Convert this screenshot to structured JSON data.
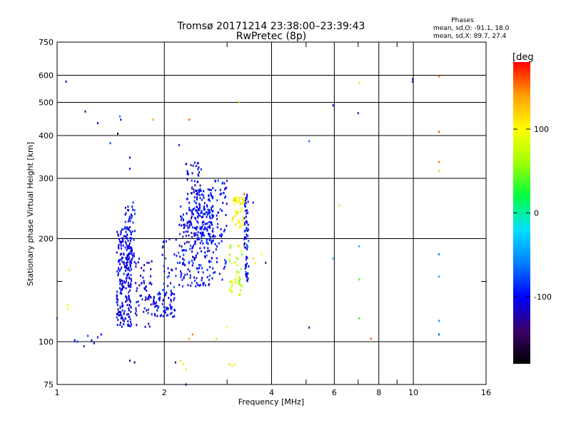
{
  "chart_data": {
    "type": "scatter",
    "title": "Tromsø 20171214 23:38:00–23:39:43",
    "subtitle": "RwPretec (8p)",
    "xlabel": "Frequency [MHz]",
    "ylabel": "Stationary phase Virtual Height [km]",
    "x_scale": "log",
    "y_scale": "log",
    "xlim": [
      1,
      16
    ],
    "ylim": [
      75,
      750
    ],
    "x_ticks": [
      1,
      2,
      4,
      6,
      8,
      10,
      16
    ],
    "x_minor_ticks": [
      3,
      5,
      7,
      9
    ],
    "y_ticks": [
      75,
      100,
      200,
      300,
      400,
      500,
      600,
      750
    ],
    "y_minor_ticks": [
      150
    ],
    "grid": true,
    "legend": {
      "heading": "Phases",
      "line1": "mean, sd,O: -91.1, 18.0",
      "line2": "mean, sd,X:  89.7, 27.4"
    },
    "colorbar": {
      "label": "[deg",
      "range": [
        -180,
        180
      ],
      "ticks": [
        -100,
        0,
        100
      ],
      "colors": [
        "#000000",
        "#3a006a",
        "#0000ff",
        "#0080ff",
        "#00e0ff",
        "#00ff40",
        "#a0ff00",
        "#ffff00",
        "#ffa000",
        "#ff0000"
      ]
    },
    "points": [
      {
        "x": 1.06,
        "y": 575,
        "p": -120
      },
      {
        "x": 1.2,
        "y": 470,
        "p": -135
      },
      {
        "x": 1.3,
        "y": 435,
        "p": -110
      },
      {
        "x": 1.41,
        "y": 380,
        "p": -80
      },
      {
        "x": 1.48,
        "y": 405,
        "p": -160
      },
      {
        "x": 1.5,
        "y": 455,
        "p": -60
      },
      {
        "x": 1.51,
        "y": 445,
        "p": -95
      },
      {
        "x": 1.6,
        "y": 345,
        "p": -105
      },
      {
        "x": 1.6,
        "y": 320,
        "p": -95
      },
      {
        "x": 1.86,
        "y": 445,
        "p": 140
      },
      {
        "x": 2.2,
        "y": 375,
        "p": -90
      },
      {
        "x": 2.35,
        "y": 445,
        "p": 160
      },
      {
        "x": 2.3,
        "y": 330,
        "p": -120
      },
      {
        "x": 2.32,
        "y": 315,
        "p": -100
      },
      {
        "x": 3.25,
        "y": 500,
        "p": 60
      },
      {
        "x": 5.1,
        "y": 385,
        "p": -70
      },
      {
        "x": 5.95,
        "y": 490,
        "p": -100
      },
      {
        "x": 7.05,
        "y": 570,
        "p": 80
      },
      {
        "x": 7.0,
        "y": 465,
        "p": -120
      },
      {
        "x": 9.95,
        "y": 575,
        "p": -110
      },
      {
        "x": 9.95,
        "y": 585,
        "p": -90
      },
      {
        "x": 11.8,
        "y": 595,
        "p": 150
      },
      {
        "x": 11.8,
        "y": 410,
        "p": 160
      },
      {
        "x": 11.8,
        "y": 335,
        "p": 150
      },
      {
        "x": 11.8,
        "y": 315,
        "p": 120
      },
      {
        "x": 11.8,
        "y": 180,
        "p": -60
      },
      {
        "x": 11.8,
        "y": 155,
        "p": -40
      },
      {
        "x": 11.8,
        "y": 115,
        "p": -50
      },
      {
        "x": 11.8,
        "y": 105,
        "p": -70
      },
      {
        "x": 7.05,
        "y": 190,
        "p": -40
      },
      {
        "x": 7.05,
        "y": 152,
        "p": 40
      },
      {
        "x": 7.05,
        "y": 117,
        "p": 20
      },
      {
        "x": 6.2,
        "y": 250,
        "p": 120
      },
      {
        "x": 5.95,
        "y": 175,
        "p": -30
      },
      {
        "x": 5.1,
        "y": 110,
        "p": -130
      },
      {
        "x": 3.85,
        "y": 170,
        "p": -140
      },
      {
        "x": 3.75,
        "y": 180,
        "p": 100
      },
      {
        "x": 3.55,
        "y": 255,
        "p": -100
      },
      {
        "x": 3.35,
        "y": 270,
        "p": 160
      },
      {
        "x": 2.95,
        "y": 290,
        "p": -110
      },
      {
        "x": 3.0,
        "y": 295,
        "p": -90
      },
      {
        "x": 1.07,
        "y": 125,
        "p": 90
      },
      {
        "x": 1.07,
        "y": 128,
        "p": 100
      },
      {
        "x": 1.0,
        "y": 117,
        "p": -60
      },
      {
        "x": 1.08,
        "y": 162,
        "p": 110
      },
      {
        "x": 1.12,
        "y": 101,
        "p": -100
      },
      {
        "x": 1.14,
        "y": 100,
        "p": -90
      },
      {
        "x": 1.19,
        "y": 97,
        "p": -120
      },
      {
        "x": 1.22,
        "y": 104,
        "p": -80
      },
      {
        "x": 1.25,
        "y": 101,
        "p": -100
      },
      {
        "x": 1.27,
        "y": 99,
        "p": -110
      },
      {
        "x": 1.3,
        "y": 103,
        "p": -95
      },
      {
        "x": 1.33,
        "y": 105,
        "p": -100
      },
      {
        "x": 1.6,
        "y": 88,
        "p": -120
      },
      {
        "x": 1.65,
        "y": 87,
        "p": -150
      },
      {
        "x": 2.15,
        "y": 87,
        "p": -130
      },
      {
        "x": 2.22,
        "y": 88,
        "p": 120
      },
      {
        "x": 2.26,
        "y": 86,
        "p": 110
      },
      {
        "x": 2.3,
        "y": 83,
        "p": 90
      },
      {
        "x": 2.3,
        "y": 75,
        "p": -100
      },
      {
        "x": 2.35,
        "y": 102,
        "p": 140
      },
      {
        "x": 2.4,
        "y": 105,
        "p": 150
      },
      {
        "x": 2.8,
        "y": 102,
        "p": 120
      },
      {
        "x": 3.05,
        "y": 86,
        "p": 120
      },
      {
        "x": 3.1,
        "y": 85,
        "p": 110
      },
      {
        "x": 3.15,
        "y": 86,
        "p": 90
      },
      {
        "x": 3.0,
        "y": 110,
        "p": 100
      },
      {
        "x": 7.6,
        "y": 102,
        "p": 160
      },
      {
        "x": 3.05,
        "y": 142,
        "p": 80
      },
      {
        "x": 3.1,
        "y": 140,
        "p": 70
      },
      {
        "x": 3.1,
        "y": 170,
        "p": 100
      },
      {
        "x": 3.05,
        "y": 175,
        "p": 90
      },
      {
        "x": 3.3,
        "y": 180,
        "p": 40
      },
      {
        "x": 3.35,
        "y": 190,
        "p": 60
      },
      {
        "x": 3.2,
        "y": 160,
        "p": 40
      },
      {
        "x": 3.25,
        "y": 150,
        "p": 30
      },
      {
        "x": 3.55,
        "y": 175,
        "p": 120
      },
      {
        "x": 3.6,
        "y": 170,
        "p": 90
      }
    ],
    "clusters": [
      {
        "x": [
          1.47,
          1.62
        ],
        "y": [
          110,
          215
        ],
        "n": 230,
        "p": -105,
        "sd": 20
      },
      {
        "x": [
          1.55,
          1.66
        ],
        "y": [
          165,
          260
        ],
        "n": 60,
        "p": -100,
        "sd": 20
      },
      {
        "x": [
          1.65,
          1.85
        ],
        "y": [
          110,
          175
        ],
        "n": 60,
        "p": -110,
        "sd": 25
      },
      {
        "x": [
          1.86,
          2.15
        ],
        "y": [
          118,
          140
        ],
        "n": 70,
        "p": -100,
        "sd": 20
      },
      {
        "x": [
          1.95,
          2.2
        ],
        "y": [
          140,
          200
        ],
        "n": 30,
        "p": -95,
        "sd": 25
      },
      {
        "x": [
          2.2,
          2.75
        ],
        "y": [
          145,
          250
        ],
        "n": 200,
        "p": -100,
        "sd": 25
      },
      {
        "x": [
          2.3,
          2.55
        ],
        "y": [
          195,
          335
        ],
        "n": 80,
        "p": -110,
        "sd": 25
      },
      {
        "x": [
          2.45,
          2.75
        ],
        "y": [
          195,
          280
        ],
        "n": 90,
        "p": -95,
        "sd": 20
      },
      {
        "x": [
          2.7,
          3.0
        ],
        "y": [
          150,
          300
        ],
        "n": 60,
        "p": -95,
        "sd": 20
      },
      {
        "x": [
          3.1,
          3.35
        ],
        "y": [
          215,
          265
        ],
        "n": 45,
        "p": 105,
        "sd": 15
      },
      {
        "x": [
          3.35,
          3.45
        ],
        "y": [
          150,
          270
        ],
        "n": 70,
        "p": -100,
        "sd": 30
      },
      {
        "x": [
          3.05,
          3.3
        ],
        "y": [
          135,
          195
        ],
        "n": 35,
        "p": 80,
        "sd": 30
      }
    ]
  }
}
